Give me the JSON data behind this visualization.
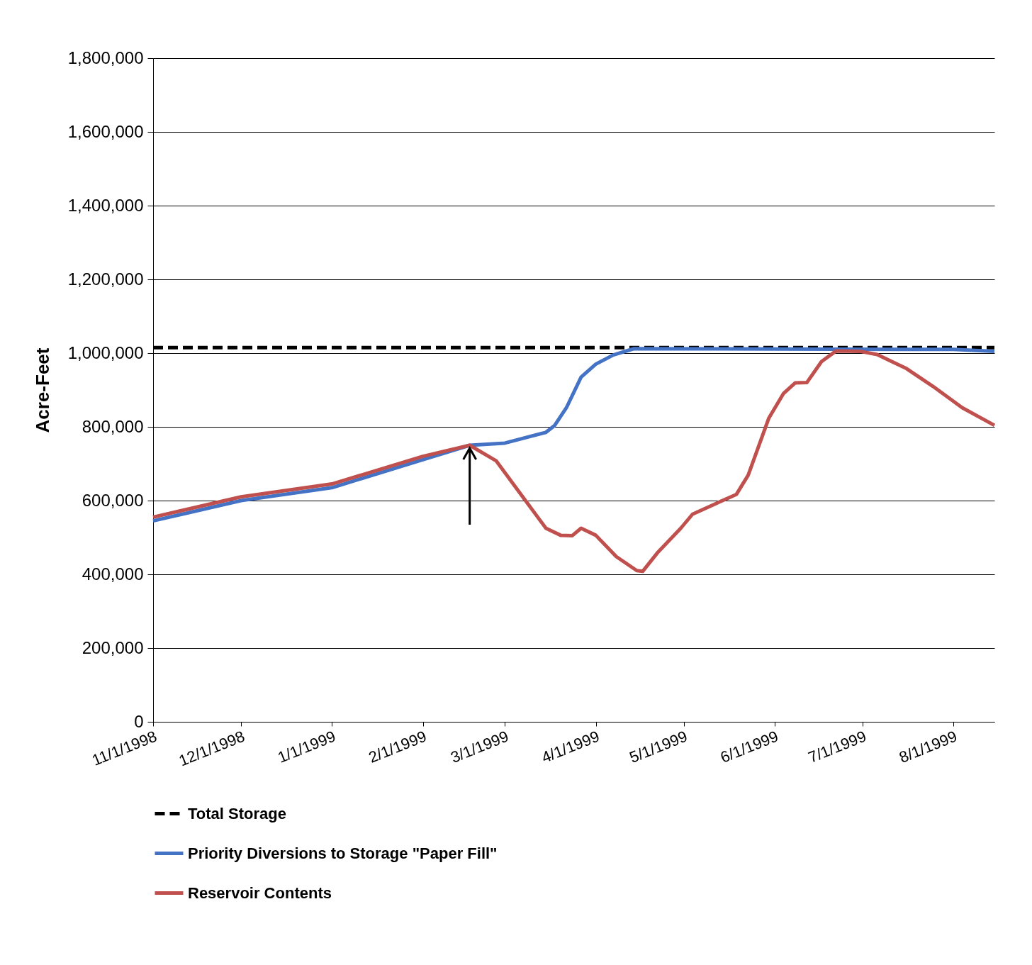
{
  "chart_data": {
    "type": "line",
    "ylabel": "Acre-Feet",
    "xlim": [
      "1998-11-01",
      "1999-08-15"
    ],
    "ylim": [
      0,
      1800000
    ],
    "yticks": [
      0,
      {
        "value": 200000,
        "label": "200,000"
      },
      {
        "value": 400000,
        "label": "400,000"
      },
      {
        "value": 600000,
        "label": "600,000"
      },
      {
        "value": 800000,
        "label": "800,000"
      },
      {
        "value": 1000000,
        "label": "1,000,000"
      },
      {
        "value": 1200000,
        "label": "1,200,000"
      },
      {
        "value": 1400000,
        "label": "1,400,000"
      },
      {
        "value": 1600000,
        "label": "1,600,000"
      },
      {
        "value": 1800000,
        "label": "1,800,000"
      }
    ],
    "xticks": [
      {
        "value": "1998-11-01",
        "label": "11/1/1998"
      },
      {
        "value": "1998-12-01",
        "label": "12/1/1998"
      },
      {
        "value": "1999-01-01",
        "label": "1/1/1999"
      },
      {
        "value": "1999-02-01",
        "label": "2/1/1999"
      },
      {
        "value": "1999-03-01",
        "label": "3/1/1999"
      },
      {
        "value": "1999-04-01",
        "label": "4/1/1999"
      },
      {
        "value": "1999-05-01",
        "label": "5/1/1999"
      },
      {
        "value": "1999-06-01",
        "label": "6/1/1999"
      },
      {
        "value": "1999-07-01",
        "label": "7/1/1999"
      },
      {
        "value": "1999-08-01",
        "label": "8/1/1999"
      }
    ],
    "grid": "y",
    "legend": "bottom",
    "series": [
      {
        "name": "Total Storage",
        "color": "#000000",
        "line_style": "dashed",
        "x": [
          "1998-11-01",
          "1999-08-15"
        ],
        "values": [
          1015000,
          1015000
        ]
      },
      {
        "name": "Priority Diversions to Storage \"Paper Fill\"",
        "color": "#4472c4",
        "line_style": "solid",
        "x": [
          "1998-11-01",
          "1998-12-01",
          "1999-01-01",
          "1999-02-01",
          "1999-02-17",
          "1999-03-01",
          "1999-03-15",
          "1999-03-18",
          "1999-03-22",
          "1999-03-27",
          "1999-04-01",
          "1999-04-07",
          "1999-04-14",
          "1999-08-01",
          "1999-08-15"
        ],
        "values": [
          545000,
          600000,
          635000,
          711000,
          750000,
          756000,
          785000,
          804000,
          852000,
          935000,
          970000,
          995000,
          1012000,
          1010000,
          1005000
        ]
      },
      {
        "name": "Reservoir Contents",
        "color": "#c0504d",
        "line_style": "solid",
        "x": [
          "1998-11-01",
          "1998-12-01",
          "1999-01-01",
          "1999-02-01",
          "1999-02-17",
          "1999-02-26",
          "1999-03-07",
          "1999-03-15",
          "1999-03-20",
          "1999-03-24",
          "1999-03-27",
          "1999-04-01",
          "1999-04-08",
          "1999-04-15",
          "1999-04-17",
          "1999-04-22",
          "1999-04-30",
          "1999-05-04",
          "1999-05-12",
          "1999-05-19",
          "1999-05-23",
          "1999-05-30",
          "1999-06-04",
          "1999-06-08",
          "1999-06-12",
          "1999-06-17",
          "1999-06-22",
          "1999-06-30",
          "1999-07-06",
          "1999-07-16",
          "1999-07-25",
          "1999-08-04",
          "1999-08-15"
        ],
        "values": [
          555000,
          610000,
          645000,
          720000,
          750000,
          708000,
          611000,
          525000,
          506000,
          505000,
          525000,
          506000,
          448000,
          410000,
          408000,
          458000,
          525000,
          563000,
          592000,
          617000,
          669000,
          823000,
          890000,
          919000,
          920000,
          977000,
          1006000,
          1005000,
          996000,
          958000,
          910000,
          852000,
          804000
        ]
      }
    ]
  }
}
